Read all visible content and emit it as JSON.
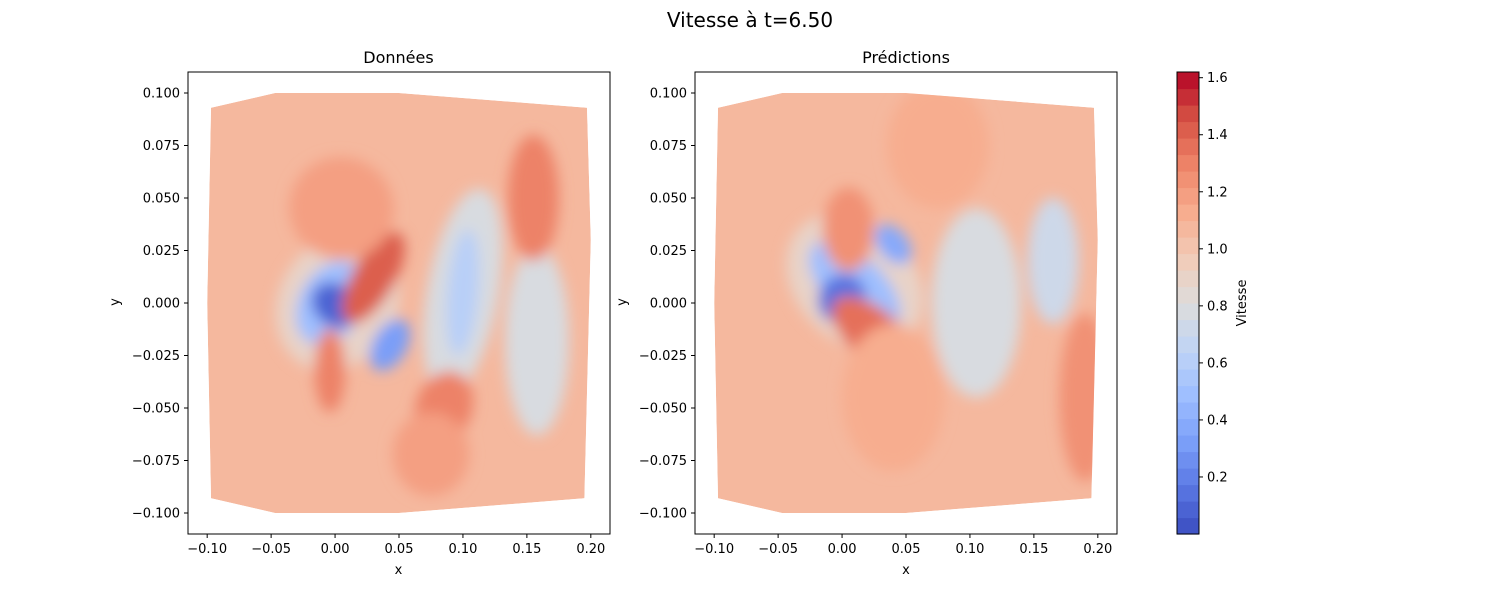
{
  "figure": {
    "title": "Vitesse à t=6.50"
  },
  "chart_data": [
    {
      "type": "heatmap",
      "title": "Données",
      "xlabel": "x",
      "ylabel": "y",
      "xlim": [
        -0.115,
        0.215
      ],
      "ylim": [
        -0.11,
        0.11
      ],
      "xticks": [
        "−0.10",
        "−0.05",
        "0.00",
        "0.05",
        "0.10",
        "0.15",
        "0.20"
      ],
      "yticks": [
        "−0.100",
        "−0.075",
        "−0.050",
        "−0.025",
        "0.000",
        "0.025",
        "0.050",
        "0.075",
        "0.100"
      ],
      "xtick_values": [
        -0.1,
        -0.05,
        0.0,
        0.05,
        0.1,
        0.15,
        0.2
      ],
      "ytick_values": [
        -0.1,
        -0.075,
        -0.05,
        -0.025,
        0.0,
        0.025,
        0.05,
        0.075,
        0.1
      ],
      "domain_outline": [
        [
          -0.097,
          0.093
        ],
        [
          -0.047,
          0.1
        ],
        [
          0.05,
          0.1
        ],
        [
          0.197,
          0.093
        ],
        [
          0.2,
          0.03
        ],
        [
          0.195,
          -0.093
        ],
        [
          0.05,
          -0.1
        ],
        [
          -0.047,
          -0.1
        ],
        [
          -0.097,
          -0.093
        ],
        [
          -0.1,
          0.0
        ]
      ],
      "background_value": 1.05,
      "features": [
        {
          "cx": 0.002,
          "cy": 0.0,
          "rx": 0.055,
          "ry": 0.028,
          "rot": -60,
          "v": 0.88
        },
        {
          "cx": -0.003,
          "cy": 0.0,
          "rx": 0.035,
          "ry": 0.015,
          "rot": -60,
          "v": 0.5
        },
        {
          "cx": 0.0,
          "cy": -0.001,
          "rx": 0.016,
          "ry": 0.012,
          "rot": -50,
          "v": 0.08
        },
        {
          "cx": 0.043,
          "cy": -0.02,
          "rx": 0.022,
          "ry": 0.008,
          "rot": -60,
          "v": 0.3
        },
        {
          "cx": 0.03,
          "cy": 0.012,
          "rx": 0.04,
          "ry": 0.01,
          "rot": -60,
          "v": 1.42
        },
        {
          "cx": 0.005,
          "cy": 0.045,
          "rx": 0.04,
          "ry": 0.025,
          "rot": -70,
          "v": 1.2
        },
        {
          "cx": -0.004,
          "cy": -0.032,
          "rx": 0.012,
          "ry": 0.02,
          "rot": 0,
          "v": 1.3
        },
        {
          "cx": 0.1,
          "cy": 0.005,
          "rx": 0.028,
          "ry": 0.05,
          "rot": 10,
          "v": 0.8
        },
        {
          "cx": 0.1,
          "cy": 0.005,
          "rx": 0.012,
          "ry": 0.03,
          "rot": 5,
          "v": 0.62
        },
        {
          "cx": 0.158,
          "cy": -0.018,
          "rx": 0.025,
          "ry": 0.045,
          "rot": 0,
          "v": 0.78
        },
        {
          "cx": 0.155,
          "cy": 0.05,
          "rx": 0.02,
          "ry": 0.03,
          "rot": 0,
          "v": 1.28
        },
        {
          "cx": 0.085,
          "cy": -0.05,
          "rx": 0.022,
          "ry": 0.018,
          "rot": 20,
          "v": 1.32
        },
        {
          "cx": 0.075,
          "cy": -0.072,
          "rx": 0.03,
          "ry": 0.02,
          "rot": 0,
          "v": 1.18
        }
      ]
    },
    {
      "type": "heatmap",
      "title": "Prédictions",
      "xlabel": "x",
      "ylabel": "y",
      "xlim": [
        -0.115,
        0.215
      ],
      "ylim": [
        -0.11,
        0.11
      ],
      "xticks": [
        "−0.10",
        "−0.05",
        "0.00",
        "0.05",
        "0.10",
        "0.15",
        "0.20"
      ],
      "yticks": [
        "−0.100",
        "−0.075",
        "−0.050",
        "−0.025",
        "0.000",
        "0.025",
        "0.050",
        "0.075",
        "0.100"
      ],
      "xtick_values": [
        -0.1,
        -0.05,
        0.0,
        0.05,
        0.1,
        0.15,
        0.2
      ],
      "ytick_values": [
        -0.1,
        -0.075,
        -0.05,
        -0.025,
        0.0,
        0.025,
        0.05,
        0.075,
        0.1
      ],
      "domain_outline": [
        [
          -0.097,
          0.093
        ],
        [
          -0.047,
          0.1
        ],
        [
          0.05,
          0.1
        ],
        [
          0.197,
          0.093
        ],
        [
          0.2,
          0.03
        ],
        [
          0.195,
          -0.093
        ],
        [
          0.05,
          -0.1
        ],
        [
          -0.047,
          -0.1
        ],
        [
          -0.097,
          -0.093
        ],
        [
          -0.1,
          0.0
        ]
      ],
      "background_value": 1.05,
      "features": [
        {
          "cx": 0.01,
          "cy": 0.01,
          "rx": 0.06,
          "ry": 0.028,
          "rot": 45,
          "v": 0.88
        },
        {
          "cx": 0.01,
          "cy": 0.008,
          "rx": 0.045,
          "ry": 0.014,
          "rot": 45,
          "v": 0.5
        },
        {
          "cx": 0.0,
          "cy": 0.002,
          "rx": 0.018,
          "ry": 0.012,
          "rot": 40,
          "v": 0.12
        },
        {
          "cx": 0.04,
          "cy": 0.028,
          "rx": 0.018,
          "ry": 0.007,
          "rot": 50,
          "v": 0.35
        },
        {
          "cx": 0.025,
          "cy": -0.015,
          "rx": 0.04,
          "ry": 0.012,
          "rot": 40,
          "v": 1.38
        },
        {
          "cx": 0.005,
          "cy": 0.035,
          "rx": 0.02,
          "ry": 0.02,
          "rot": 0,
          "v": 1.25
        },
        {
          "cx": 0.105,
          "cy": 0.0,
          "rx": 0.035,
          "ry": 0.045,
          "rot": 0,
          "v": 0.78
        },
        {
          "cx": 0.165,
          "cy": 0.02,
          "rx": 0.02,
          "ry": 0.03,
          "rot": 0,
          "v": 0.72
        },
        {
          "cx": 0.075,
          "cy": 0.075,
          "rx": 0.04,
          "ry": 0.03,
          "rot": 0,
          "v": 1.15
        },
        {
          "cx": 0.19,
          "cy": -0.045,
          "rx": 0.02,
          "ry": 0.04,
          "rot": 0,
          "v": 1.25
        },
        {
          "cx": 0.04,
          "cy": -0.045,
          "rx": 0.04,
          "ry": 0.035,
          "rot": 0,
          "v": 1.15
        }
      ]
    }
  ],
  "colorbar": {
    "label": "Vitesse",
    "min": 0.0,
    "max": 1.62,
    "tick_values": [
      0.2,
      0.4,
      0.6,
      0.8,
      1.0,
      1.2,
      1.4,
      1.6
    ],
    "tick_labels": [
      "0.2",
      "0.4",
      "0.6",
      "0.8",
      "1.0",
      "1.2",
      "1.4",
      "1.6"
    ],
    "levels": 28,
    "colormap": "coolwarm",
    "colors": [
      "#3b4cc0",
      "#5977e3",
      "#7b9ff9",
      "#9ebeff",
      "#c0d4f5",
      "#dddcdc",
      "#f2cbb7",
      "#f7ac8e",
      "#ee8468",
      "#d65244",
      "#b40426"
    ]
  }
}
